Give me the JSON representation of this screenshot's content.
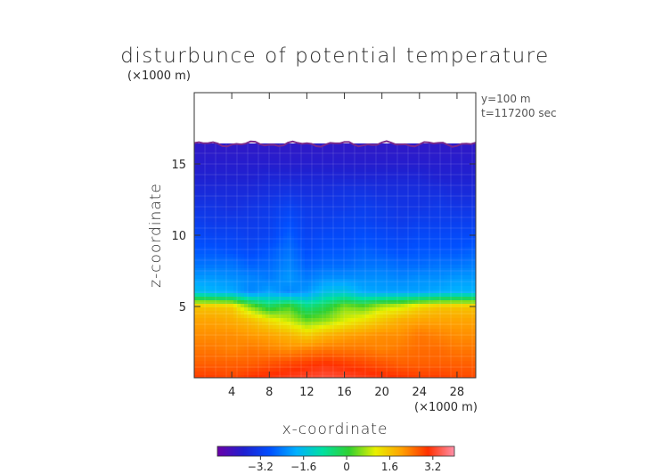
{
  "chart_data": {
    "type": "heatmap",
    "title": "disturbunce of potential temperature",
    "xlabel": "x-coordinate",
    "ylabel": "z-coordinate",
    "x_unit": "(×1000 m)",
    "y_unit": "(×1000 m)",
    "annotations": [
      "y=100 m",
      "t=117200 sec"
    ],
    "x_ticks": [
      4,
      8,
      12,
      16,
      20,
      24,
      28
    ],
    "y_ticks": [
      5,
      10,
      15
    ],
    "xlim": [
      0,
      30
    ],
    "ylim": [
      0,
      20
    ],
    "colorbar": {
      "ticks": [
        "−3.2",
        "−1.6",
        "0",
        "1.6",
        "3.2"
      ],
      "tick_values": [
        -3.2,
        -1.6,
        0,
        1.6,
        3.2
      ],
      "range": [
        -4.8,
        4.0
      ],
      "colors": [
        "#6a00a8",
        "#2020d0",
        "#0050ff",
        "#00b0ff",
        "#00e0a0",
        "#30d030",
        "#e8f000",
        "#ffa000",
        "#ff3000",
        "#ff8fa8"
      ]
    },
    "field": {
      "x": [
        0,
        2,
        4,
        6,
        8,
        10,
        12,
        14,
        16,
        18,
        20,
        22,
        24,
        26,
        28,
        30
      ],
      "z": [
        0,
        1,
        2,
        3,
        4,
        5,
        6,
        7,
        8,
        9,
        10,
        11,
        12,
        13,
        14,
        15,
        16
      ],
      "values": [
        [
          2.9,
          2.9,
          2.8,
          3.0,
          3.1,
          3.2,
          3.3,
          3.4,
          3.3,
          3.2,
          3.1,
          3.0,
          2.9,
          2.9,
          2.8,
          2.8
        ],
        [
          2.6,
          2.6,
          2.6,
          2.6,
          2.7,
          2.8,
          2.9,
          3.0,
          2.9,
          2.8,
          2.7,
          2.6,
          2.6,
          2.6,
          2.6,
          2.6
        ],
        [
          2.4,
          2.4,
          2.3,
          2.4,
          2.3,
          2.2,
          2.3,
          2.4,
          2.4,
          2.4,
          2.3,
          2.4,
          2.5,
          2.5,
          2.4,
          2.4
        ],
        [
          2.2,
          2.2,
          2.2,
          2.1,
          2.0,
          1.8,
          1.5,
          1.8,
          2.0,
          2.1,
          2.2,
          2.2,
          2.4,
          2.3,
          2.2,
          2.2
        ],
        [
          2.0,
          2.0,
          1.9,
          1.7,
          1.3,
          0.9,
          0.4,
          0.6,
          1.0,
          1.3,
          1.6,
          1.9,
          2.0,
          2.0,
          2.0,
          2.0
        ],
        [
          1.6,
          1.6,
          1.5,
          0.5,
          -0.3,
          0.2,
          -0.6,
          -0.2,
          0.5,
          0.3,
          0.8,
          1.0,
          1.4,
          1.6,
          1.6,
          1.6
        ],
        [
          -1.6,
          -1.8,
          -1.9,
          -2.3,
          -2.0,
          -2.3,
          -2.1,
          -1.6,
          -1.5,
          -1.9,
          -2.0,
          -2.0,
          -2.0,
          -1.9,
          -1.8,
          -1.8
        ],
        [
          -2.1,
          -2.1,
          -2.2,
          -2.3,
          -2.4,
          -2.1,
          -2.4,
          -2.2,
          -2.2,
          -2.2,
          -2.2,
          -2.3,
          -2.2,
          -2.2,
          -2.1,
          -2.1
        ],
        [
          -2.5,
          -2.5,
          -2.5,
          -2.7,
          -2.6,
          -2.3,
          -2.7,
          -2.6,
          -2.6,
          -2.5,
          -2.5,
          -2.6,
          -2.6,
          -2.5,
          -2.5,
          -2.4
        ],
        [
          -2.8,
          -2.8,
          -2.9,
          -3.0,
          -2.8,
          -2.5,
          -2.9,
          -2.8,
          -2.8,
          -2.7,
          -2.8,
          -2.9,
          -2.8,
          -2.8,
          -2.8,
          -2.7
        ],
        [
          -3.0,
          -3.1,
          -3.1,
          -3.2,
          -3.1,
          -2.7,
          -3.1,
          -3.0,
          -3.0,
          -2.9,
          -3.0,
          -3.1,
          -3.0,
          -3.0,
          -3.0,
          -3.0
        ],
        [
          -3.2,
          -3.3,
          -3.3,
          -3.3,
          -3.2,
          -2.9,
          -3.2,
          -3.2,
          -3.1,
          -3.1,
          -3.2,
          -3.3,
          -3.2,
          -3.2,
          -3.2,
          -3.2
        ],
        [
          -3.4,
          -3.4,
          -3.5,
          -3.4,
          -3.3,
          -3.1,
          -3.3,
          -3.3,
          -3.3,
          -3.2,
          -3.3,
          -3.4,
          -3.4,
          -3.3,
          -3.4,
          -3.4
        ],
        [
          -3.6,
          -3.6,
          -3.6,
          -3.6,
          -3.5,
          -3.4,
          -3.5,
          -3.5,
          -3.4,
          -3.4,
          -3.5,
          -3.5,
          -3.5,
          -3.5,
          -3.6,
          -3.6
        ],
        [
          -3.8,
          -3.8,
          -3.8,
          -3.8,
          -3.7,
          -3.7,
          -3.7,
          -3.7,
          -3.7,
          -3.7,
          -3.7,
          -3.7,
          -3.7,
          -3.8,
          -3.8,
          -3.8
        ],
        [
          -3.9,
          -3.9,
          -3.9,
          -3.9,
          -3.9,
          -3.9,
          -3.9,
          -3.9,
          -3.9,
          -3.9,
          -3.9,
          -3.9,
          -3.9,
          -3.9,
          -3.9,
          -3.9
        ],
        [
          -4.0,
          -4.0,
          -4.0,
          -4.0,
          -4.0,
          -4.0,
          -4.0,
          -4.0,
          -4.0,
          -4.0,
          -4.0,
          -4.0,
          -4.0,
          -4.0,
          -4.0,
          -4.0
        ]
      ],
      "top_boundary_z": 16.4
    }
  }
}
